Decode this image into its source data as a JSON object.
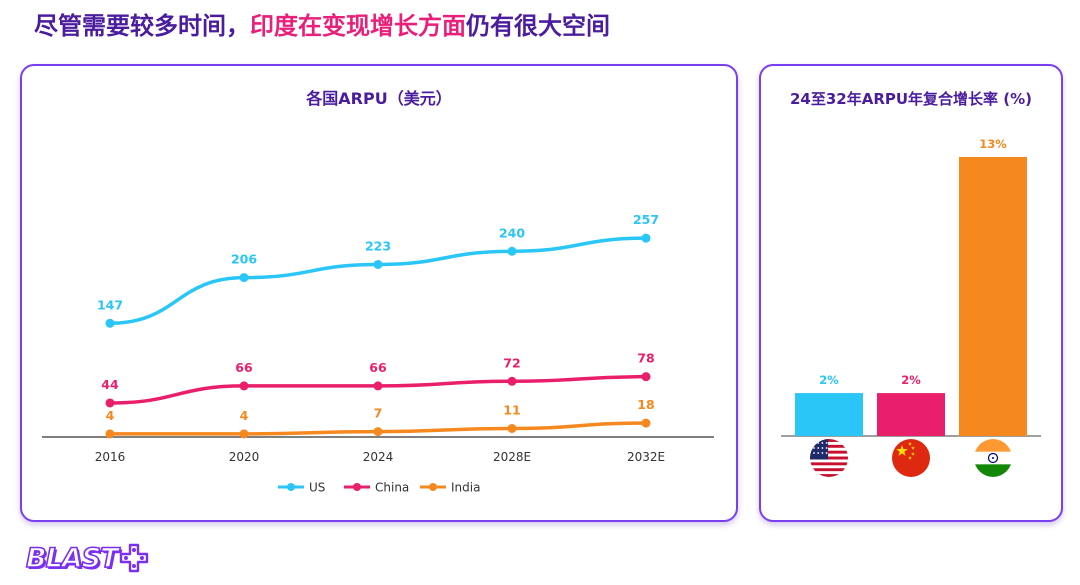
{
  "headline": {
    "part1": "尽管需要较多时间，",
    "part2": "印度在变现增长方面",
    "part3": "仍有很大空间"
  },
  "colors": {
    "brand_purple": "#4b1d9e",
    "accent_pink": "#ea1f7a",
    "panel_border": "#7b3ff2",
    "us": "#29c6f7",
    "china": "#ea1f6c",
    "india": "#f5881f"
  },
  "logo": {
    "text": "BLAST"
  },
  "chart_data": [
    {
      "type": "line",
      "title": "各国ARPU（美元）",
      "categories": [
        "2016",
        "2020",
        "2024",
        "2028E",
        "2032E"
      ],
      "series": [
        {
          "name": "US",
          "color": "#29c6f7",
          "values": [
            147,
            206,
            223,
            240,
            257
          ]
        },
        {
          "name": "China",
          "color": "#ea1f6c",
          "values": [
            44,
            66,
            66,
            72,
            78
          ]
        },
        {
          "name": "India",
          "color": "#f5881f",
          "values": [
            4,
            4,
            7,
            11,
            18
          ]
        }
      ],
      "xlabel": "",
      "ylabel": "",
      "ylim": [
        0,
        300
      ],
      "grid": false,
      "legend": "bottom-center"
    },
    {
      "type": "bar",
      "title": "24至32年ARPU年复合增长率 (%)",
      "categories": [
        "US",
        "China",
        "India"
      ],
      "icons": [
        "us-flag-icon",
        "china-flag-icon",
        "india-flag-icon"
      ],
      "values": [
        2,
        2,
        13
      ],
      "labels": [
        "2%",
        "2%",
        "13%"
      ],
      "colors": [
        "#29c6f7",
        "#ea1f6c",
        "#f5881f"
      ],
      "ylim": [
        0,
        13
      ]
    }
  ]
}
